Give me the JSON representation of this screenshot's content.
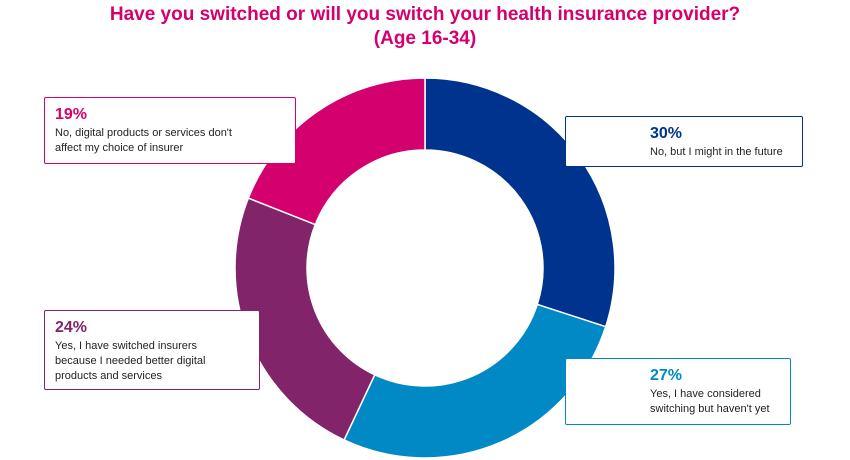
{
  "chart_data": {
    "type": "donut",
    "title": "Have you switched or will you switch your health insurance provider?",
    "subtitle": "(Age 16-34)",
    "categories": [
      "No, but I might in the future",
      "Yes, I have considered switching but haven't yet",
      "Yes, I have switched insurers because I needed better digital products and services",
      "No, digital products or services don't affect my choice of insurer"
    ],
    "values": [
      30,
      27,
      24,
      19
    ],
    "value_labels": [
      "30%",
      "27%",
      "24%",
      "19%"
    ],
    "colors": [
      "#00338d",
      "#0089c4",
      "#812469",
      "#d4006e"
    ]
  }
}
